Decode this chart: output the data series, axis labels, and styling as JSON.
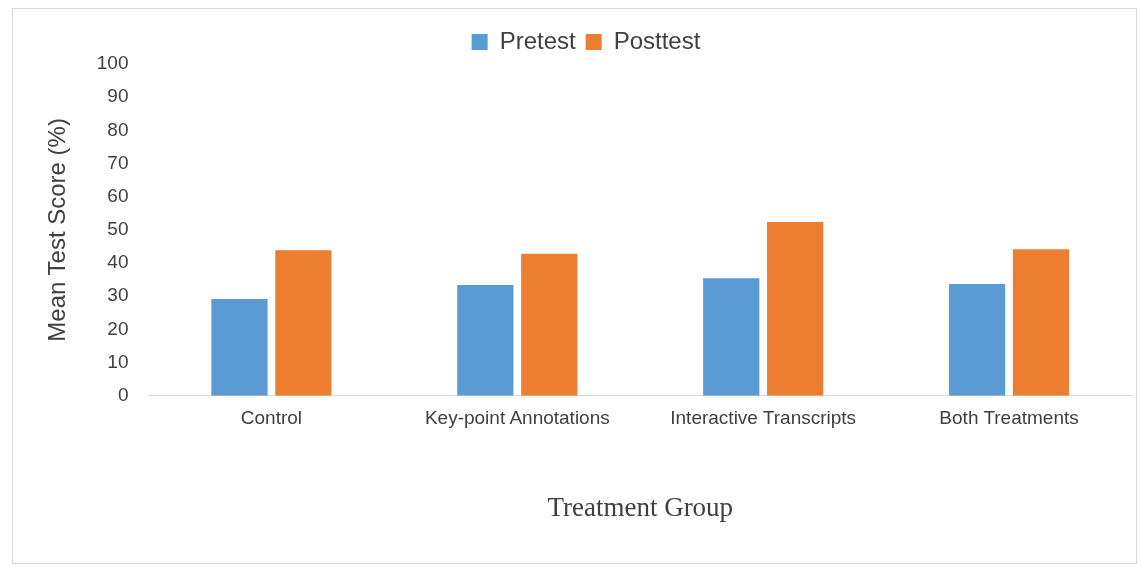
{
  "chart_data": {
    "type": "bar",
    "xlabel": "Treatment Group",
    "ylabel": "Mean Test Score (%)",
    "categories": [
      "Control",
      "Key-point Annotations",
      "Interactive Transcripts",
      "Both Treatments"
    ],
    "series": [
      {
        "name": "Pretest",
        "color": "#5b9bd5",
        "values": [
          29.2,
          33.4,
          35.4,
          33.7
        ]
      },
      {
        "name": "Posttest",
        "color": "#ed7d31",
        "values": [
          43.9,
          42.8,
          52.4,
          44.2
        ]
      }
    ],
    "ylim": [
      0,
      100
    ],
    "yticks": [
      0,
      10,
      20,
      30,
      40,
      50,
      60,
      70,
      80,
      90,
      100
    ],
    "grid": false,
    "legend": "top"
  }
}
